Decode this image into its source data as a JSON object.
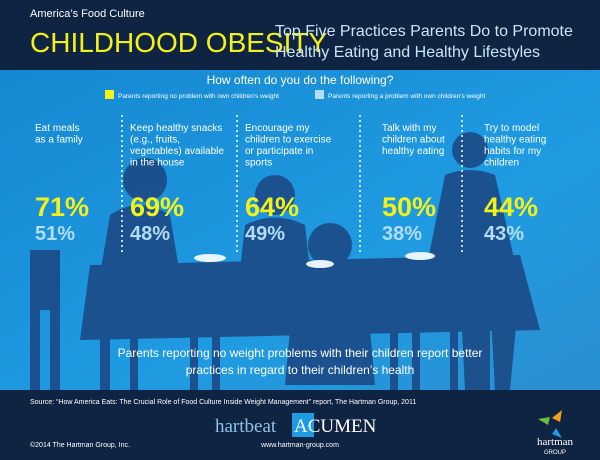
{
  "header": {
    "kicker": "America’s Food Culture",
    "title": "CHILDHOOD OBESITY",
    "subtitle_lines": [
      "Top Five Practices Parents Do to Promote",
      "Healthy Eating and Healthy Lifestyles"
    ]
  },
  "question": "How often do you do the following?",
  "legend": [
    {
      "label": "Parents reporting no problem with own children's weight",
      "color": "#f2f21a"
    },
    {
      "label": "Parents reporting a problem with own children's weight",
      "color": "#b3dcf5"
    }
  ],
  "practices": [
    {
      "lines": [
        "Eat meals",
        "as a family"
      ],
      "no_problem": "71%",
      "problem": "51%"
    },
    {
      "lines": [
        "Keep healthy snacks",
        "(e.g., fruits,",
        "vegetables) available",
        "in the house"
      ],
      "no_problem": "69%",
      "problem": "48%"
    },
    {
      "lines": [
        "Encourage my",
        "children to exercise",
        "or participate in",
        "sports"
      ],
      "no_problem": "64%",
      "problem": "49%"
    },
    {
      "lines": [
        "Talk with my",
        "children about",
        "healthy eating"
      ],
      "no_problem": "50%",
      "problem": "38%"
    },
    {
      "lines": [
        "Try to model",
        "healthy eating",
        "habits for my",
        "children"
      ],
      "no_problem": "44%",
      "problem": "43%"
    }
  ],
  "summary_lines": [
    "Parents reporting no weight problems with their children report better",
    "practices in regard to their children’s health"
  ],
  "source": "Source: “How America Eats: The Crucial Role of Food Culture Inside Weight Management” report, The Hartman Group, 2011",
  "footer": {
    "brand": [
      "hartbeat",
      "ACUMEN"
    ],
    "url": "www.hartman-group.com",
    "copyright": "©2014 The Hartman Group, Inc.",
    "logo": [
      "hartman",
      "GROUP"
    ]
  }
}
